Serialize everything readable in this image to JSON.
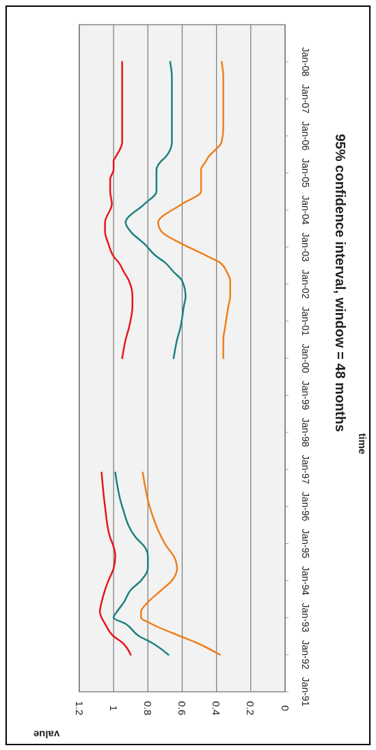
{
  "chart_data": {
    "type": "line",
    "orientation": "horizontal",
    "title": "95% confidence interval, window = 48 months",
    "ylabel": "time",
    "xlabel": "value",
    "x": [
      "1992-01",
      "1992-05",
      "1992-07",
      "1992-11",
      "1993-01",
      "1993-03",
      "1993-06",
      "1993-10",
      "1994-01",
      "1994-05",
      "1994-09",
      "1994-12",
      "1995-03",
      "1996-01",
      "1996-12",
      "1998-07",
      "2000-01",
      "2000-07",
      "2000-11",
      "2001-06",
      "2001-09",
      "2002-02",
      "2002-05",
      "2002-08",
      "2002-10",
      "2003-02",
      "2003-06",
      "2003-09",
      "2004-03",
      "2004-07",
      "2004-11",
      "2005-02",
      "2005-05",
      "2005-06",
      "2005-11",
      "2006-04",
      "2006-09",
      "2007-04",
      "2007-08",
      "2008-01"
    ],
    "series": [
      {
        "color": "#e8141c",
        "values": [
          0.9,
          0.95,
          1.0,
          1.05,
          1.07,
          1.08,
          1.07,
          1.05,
          1.03,
          1.0,
          0.99,
          1.0,
          1.02,
          1.05,
          1.07,
          null,
          0.95,
          0.93,
          0.91,
          0.89,
          0.89,
          0.91,
          0.94,
          0.97,
          1.0,
          1.03,
          1.05,
          1.05,
          1.01,
          1.02,
          1.02,
          1.0,
          1.0,
          0.99,
          0.95,
          0.95,
          0.95,
          0.95,
          0.95,
          0.95
        ]
      },
      {
        "color": "#1b8080",
        "values": [
          0.68,
          0.78,
          0.85,
          0.93,
          1.0,
          0.98,
          0.94,
          0.9,
          0.84,
          0.8,
          0.8,
          0.82,
          0.87,
          0.95,
          0.99,
          null,
          0.65,
          0.63,
          0.61,
          0.59,
          0.58,
          0.6,
          0.65,
          0.7,
          0.75,
          0.82,
          0.9,
          0.93,
          0.82,
          0.75,
          0.75,
          0.75,
          0.72,
          0.7,
          0.66,
          0.66,
          0.66,
          0.66,
          0.66,
          0.67
        ]
      },
      {
        "color": "#f07f1a",
        "values": [
          0.38,
          0.52,
          0.61,
          0.78,
          0.84,
          0.84,
          0.8,
          0.72,
          0.66,
          0.63,
          0.65,
          0.69,
          0.72,
          0.79,
          0.83,
          null,
          0.36,
          0.36,
          0.35,
          0.33,
          0.32,
          0.32,
          0.34,
          0.38,
          0.45,
          0.6,
          0.72,
          0.74,
          0.6,
          0.49,
          0.49,
          0.49,
          0.46,
          0.45,
          0.37,
          0.36,
          0.36,
          0.36,
          0.36,
          0.37
        ]
      }
    ],
    "ylim": [
      "1991-01",
      "2009-01"
    ],
    "yticks": [
      {
        "value": "1991-01",
        "label": "Jan-91"
      },
      {
        "value": "1992-01",
        "label": "Jan-92"
      },
      {
        "value": "1993-01",
        "label": "Jan-93"
      },
      {
        "value": "1994-01",
        "label": "Jan-94"
      },
      {
        "value": "1995-01",
        "label": "Jan-95"
      },
      {
        "value": "1996-01",
        "label": "Jan-96"
      },
      {
        "value": "1997-01",
        "label": "Jan-97"
      },
      {
        "value": "1998-01",
        "label": "Jan-98"
      },
      {
        "value": "1999-01",
        "label": "Jan-99"
      },
      {
        "value": "2000-01",
        "label": "Jan-00"
      },
      {
        "value": "2001-01",
        "label": "Jan-01"
      },
      {
        "value": "2002-01",
        "label": "Jan-02"
      },
      {
        "value": "2003-01",
        "label": "Jan-03"
      },
      {
        "value": "2004-01",
        "label": "Jan-04"
      },
      {
        "value": "2005-01",
        "label": "Jan-05"
      },
      {
        "value": "2006-01",
        "label": "Jan-06"
      },
      {
        "value": "2007-01",
        "label": "Jan-07"
      },
      {
        "value": "2008-01",
        "label": "Jan-08"
      }
    ],
    "xlim": [
      1.2,
      0
    ],
    "xticks": [
      1.2,
      1,
      0.8,
      0.6,
      0.4,
      0.2,
      0
    ],
    "grid": "x",
    "legend": false,
    "marker": "none",
    "line_style": "solid"
  }
}
